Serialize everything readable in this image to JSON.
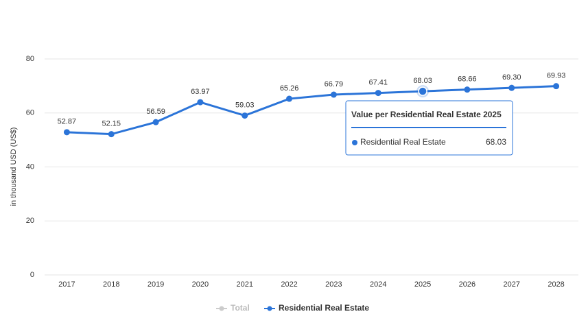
{
  "chart_data": {
    "type": "line",
    "y_label": "in thousand USD (US$)",
    "categories": [
      "2017",
      "2018",
      "2019",
      "2020",
      "2021",
      "2022",
      "2023",
      "2024",
      "2025",
      "2026",
      "2027",
      "2028"
    ],
    "series": [
      {
        "name": "Total",
        "color": "#cccccc",
        "visible": false,
        "values": [
          null,
          null,
          null,
          null,
          null,
          null,
          null,
          null,
          null,
          null,
          null,
          null
        ]
      },
      {
        "name": "Residential Real Estate",
        "color": "#2b74d8",
        "visible": true,
        "values": [
          52.87,
          52.15,
          56.59,
          63.97,
          59.03,
          65.26,
          66.79,
          67.41,
          68.03,
          68.66,
          69.3,
          69.93
        ],
        "value_labels": [
          "52.87",
          "52.15",
          "56.59",
          "63.97",
          "59.03",
          "65.26",
          "66.79",
          "67.41",
          "68.03",
          "68.66",
          "69.30",
          "69.93"
        ]
      }
    ],
    "ylim": [
      0,
      80
    ],
    "yticks": [
      0,
      20,
      40,
      60,
      80
    ],
    "grid": true,
    "tooltip": {
      "title": "Value per Residential Real Estate 2025",
      "series": 1,
      "index": 8
    }
  }
}
